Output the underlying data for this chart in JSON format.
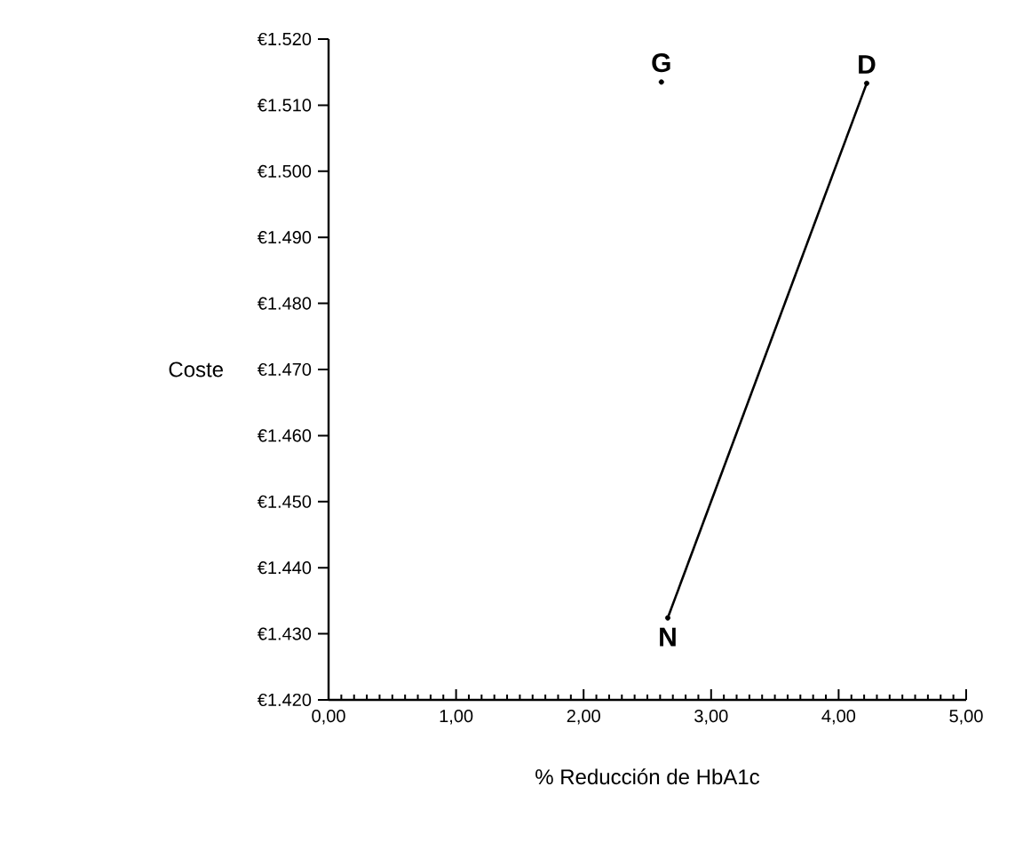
{
  "chart_data": {
    "type": "line",
    "xlabel": "% Reducción de HbA1c",
    "ylabel": "Coste",
    "series": [
      {
        "color": "#000000",
        "marker": "none",
        "x": [
          2.66,
          4.22
        ],
        "values": [
          1432.4,
          1513.3
        ]
      },
      {
        "type": "scatter",
        "color": "#000000",
        "marker": "circle",
        "x": [
          2.66,
          2.61,
          4.22
        ],
        "values": [
          1432.4,
          1513.5,
          1513.3
        ]
      }
    ],
    "line_style": "solid",
    "grid": false,
    "xlim": [
      0,
      5
    ],
    "ylim": [
      1420,
      1520
    ],
    "xticks": [
      {
        "value": 0,
        "label": "0,00"
      },
      {
        "value": 1,
        "label": "1,00"
      },
      {
        "value": 2,
        "label": "2,00"
      },
      {
        "value": 3,
        "label": "3,00"
      },
      {
        "value": 4,
        "label": "4,00"
      },
      {
        "value": 5,
        "label": "5,00"
      }
    ],
    "yticks": [
      {
        "value": 1420,
        "label": "€1.420"
      },
      {
        "value": 1430,
        "label": "€1.430"
      },
      {
        "value": 1440,
        "label": "€1.440"
      },
      {
        "value": 1450,
        "label": "€1.450"
      },
      {
        "value": 1460,
        "label": "€1.460"
      },
      {
        "value": 1470,
        "label": "€1.470"
      },
      {
        "value": 1480,
        "label": "€1.480"
      },
      {
        "value": 1490,
        "label": "€1.490"
      },
      {
        "value": 1500,
        "label": "€1.500"
      },
      {
        "value": 1510,
        "label": "€1.510"
      },
      {
        "value": 1520,
        "label": "€1.520"
      }
    ],
    "annotations": [
      {
        "text": "N",
        "x": 2.66,
        "y": 1432.4
      },
      {
        "text": "G",
        "x": 2.61,
        "y": 1513.5
      },
      {
        "text": "D",
        "x": 4.22,
        "y": 1513.3
      }
    ]
  }
}
